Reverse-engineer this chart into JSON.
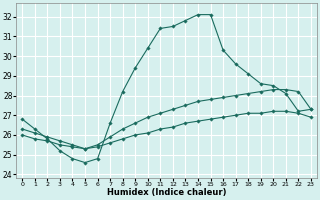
{
  "xlabel": "Humidex (Indice chaleur)",
  "ylabel": "",
  "xlim": [
    -0.5,
    23.5
  ],
  "ylim": [
    23.8,
    32.7
  ],
  "yticks": [
    24,
    25,
    26,
    27,
    28,
    29,
    30,
    31,
    32
  ],
  "xticks": [
    0,
    1,
    2,
    3,
    4,
    5,
    6,
    7,
    8,
    9,
    10,
    11,
    12,
    13,
    14,
    15,
    16,
    17,
    18,
    19,
    20,
    21,
    22,
    23
  ],
  "background_color": "#d6f0ee",
  "grid_color": "#ffffff",
  "line_color": "#1a6b5e",
  "lines": [
    {
      "x": [
        0,
        1,
        2,
        3,
        4,
        5,
        6,
        7,
        8,
        9,
        10,
        11,
        12,
        13,
        14,
        15,
        16,
        17,
        18,
        19,
        20,
        21,
        22,
        23
      ],
      "y": [
        26.8,
        26.3,
        25.8,
        25.2,
        24.8,
        24.6,
        24.8,
        26.6,
        28.2,
        29.4,
        30.4,
        31.4,
        31.5,
        31.8,
        32.1,
        32.1,
        30.3,
        29.6,
        29.1,
        28.6,
        28.5,
        28.1,
        27.2,
        27.3
      ]
    },
    {
      "x": [
        0,
        1,
        2,
        3,
        4,
        5,
        6,
        7,
        8,
        9,
        10,
        11,
        12,
        13,
        14,
        15,
        16,
        17,
        18,
        19,
        20,
        21,
        22,
        23
      ],
      "y": [
        26.3,
        26.1,
        25.9,
        25.7,
        25.5,
        25.3,
        25.5,
        25.9,
        26.3,
        26.6,
        26.9,
        27.1,
        27.3,
        27.5,
        27.7,
        27.8,
        27.9,
        28.0,
        28.1,
        28.2,
        28.3,
        28.3,
        28.2,
        27.3
      ]
    },
    {
      "x": [
        0,
        1,
        2,
        3,
        4,
        5,
        6,
        7,
        8,
        9,
        10,
        11,
        12,
        13,
        14,
        15,
        16,
        17,
        18,
        19,
        20,
        21,
        22,
        23
      ],
      "y": [
        26.0,
        25.8,
        25.7,
        25.5,
        25.4,
        25.3,
        25.4,
        25.6,
        25.8,
        26.0,
        26.1,
        26.3,
        26.4,
        26.6,
        26.7,
        26.8,
        26.9,
        27.0,
        27.1,
        27.1,
        27.2,
        27.2,
        27.1,
        26.9
      ]
    }
  ]
}
